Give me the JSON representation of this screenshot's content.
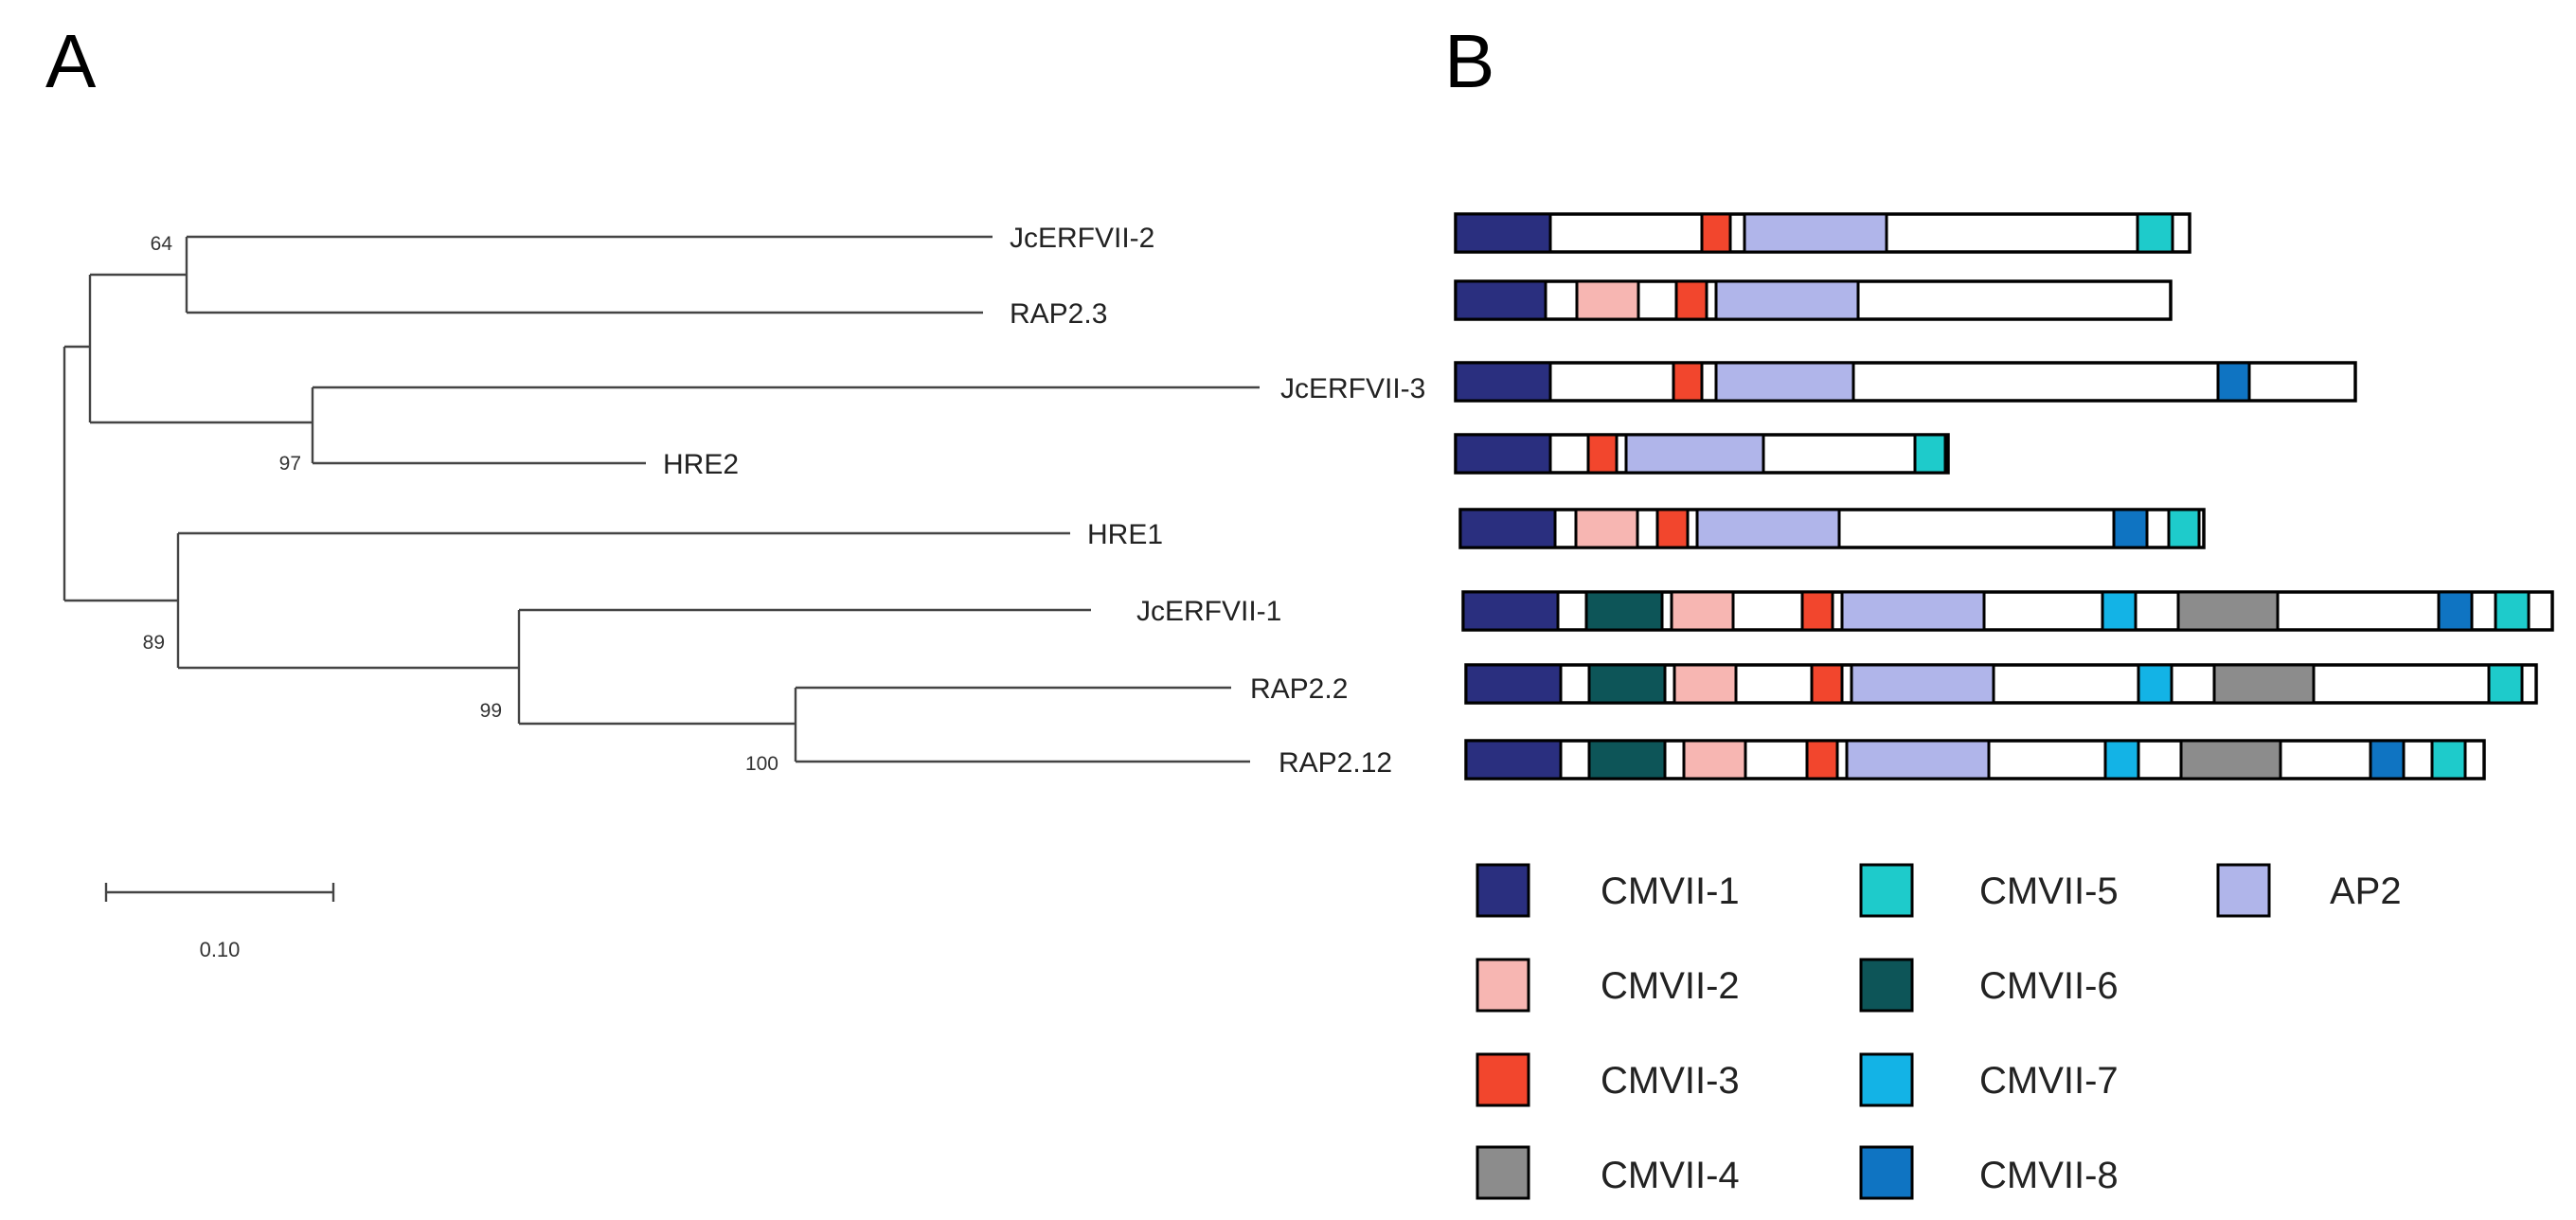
{
  "panel_labels": {
    "a": "A",
    "b": "B"
  },
  "tree": {
    "taxa": [
      "JcERFVII-2",
      "RAP2.3",
      "JcERFVII-3",
      "HRE2",
      "HRE1",
      "JcERFVII-1",
      "RAP2.2",
      "RAP2.12"
    ],
    "bootstrap": [
      "64",
      "97",
      "89",
      "99",
      "100"
    ],
    "scale_label": "0.10",
    "scale_value": 0.1,
    "line_color": "#444444"
  },
  "motifs": {
    "CMVII-1": "#2a2f7f",
    "CMVII-2": "#f7b6b2",
    "CMVII-3": "#f2462d",
    "CMVII-4": "#8c8c8c",
    "CMVII-5": "#1ecbcb",
    "CMVII-6": "#0d5558",
    "CMVII-7": "#13b3e6",
    "CMVII-8": "#0f74c2",
    "AP2": "#b0b5ea"
  },
  "legend": [
    {
      "label": "CMVII-1",
      "motif": "CMVII-1"
    },
    {
      "label": "CMVII-2",
      "motif": "CMVII-2"
    },
    {
      "label": "CMVII-3",
      "motif": "CMVII-3"
    },
    {
      "label": "CMVII-4",
      "motif": "CMVII-4"
    },
    {
      "label": "CMVII-5",
      "motif": "CMVII-5"
    },
    {
      "label": "CMVII-6",
      "motif": "CMVII-6"
    },
    {
      "label": "CMVII-7",
      "motif": "CMVII-7"
    },
    {
      "label": "CMVII-8",
      "motif": "CMVII-8"
    },
    {
      "label": "AP2",
      "motif": "AP2"
    }
  ],
  "proteins": [
    {
      "taxon": "JcERFVII-2",
      "length": 775,
      "domains": [
        {
          "m": "CMVII-1",
          "s": 0,
          "e": 100
        },
        {
          "m": "CMVII-3",
          "s": 260,
          "e": 290
        },
        {
          "m": "AP2",
          "s": 305,
          "e": 455
        },
        {
          "m": "CMVII-5",
          "s": 720,
          "e": 757
        }
      ]
    },
    {
      "taxon": "RAP2.3",
      "length": 755,
      "domains": [
        {
          "m": "CMVII-1",
          "s": 0,
          "e": 95
        },
        {
          "m": "CMVII-2",
          "s": 128,
          "e": 193
        },
        {
          "m": "CMVII-3",
          "s": 233,
          "e": 265
        },
        {
          "m": "AP2",
          "s": 275,
          "e": 425
        }
      ]
    },
    {
      "taxon": "JcERFVII-3",
      "length": 950,
      "domains": [
        {
          "m": "CMVII-1",
          "s": 0,
          "e": 100
        },
        {
          "m": "CMVII-3",
          "s": 230,
          "e": 260
        },
        {
          "m": "AP2",
          "s": 275,
          "e": 420
        },
        {
          "m": "CMVII-8",
          "s": 805,
          "e": 838
        }
      ]
    },
    {
      "taxon": "HRE2",
      "length": 520,
      "domains": [
        {
          "m": "CMVII-1",
          "s": 0,
          "e": 100
        },
        {
          "m": "CMVII-3",
          "s": 140,
          "e": 170
        },
        {
          "m": "AP2",
          "s": 180,
          "e": 325
        },
        {
          "m": "CMVII-5",
          "s": 485,
          "e": 517
        }
      ]
    },
    {
      "taxon": "HRE1",
      "length": 785,
      "domains": [
        {
          "m": "CMVII-1",
          "s": 0,
          "e": 100
        },
        {
          "m": "CMVII-2",
          "s": 122,
          "e": 187
        },
        {
          "m": "CMVII-3",
          "s": 208,
          "e": 240
        },
        {
          "m": "AP2",
          "s": 250,
          "e": 400
        },
        {
          "m": "CMVII-8",
          "s": 690,
          "e": 725
        },
        {
          "m": "CMVII-5",
          "s": 748,
          "e": 780
        }
      ]
    },
    {
      "taxon": "JcERFVII-1",
      "length": 1150,
      "domains": [
        {
          "m": "CMVII-1",
          "s": 0,
          "e": 100
        },
        {
          "m": "CMVII-6",
          "s": 130,
          "e": 210
        },
        {
          "m": "CMVII-2",
          "s": 220,
          "e": 285
        },
        {
          "m": "CMVII-3",
          "s": 358,
          "e": 390
        },
        {
          "m": "AP2",
          "s": 400,
          "e": 550
        },
        {
          "m": "CMVII-7",
          "s": 675,
          "e": 710
        },
        {
          "m": "CMVII-4",
          "s": 755,
          "e": 860
        },
        {
          "m": "CMVII-8",
          "s": 1030,
          "e": 1065
        },
        {
          "m": "CMVII-5",
          "s": 1090,
          "e": 1125
        }
      ]
    },
    {
      "taxon": "RAP2.2",
      "length": 1130,
      "domains": [
        {
          "m": "CMVII-1",
          "s": 0,
          "e": 100
        },
        {
          "m": "CMVII-6",
          "s": 130,
          "e": 210
        },
        {
          "m": "CMVII-2",
          "s": 220,
          "e": 285
        },
        {
          "m": "CMVII-3",
          "s": 365,
          "e": 397
        },
        {
          "m": "AP2",
          "s": 407,
          "e": 557
        },
        {
          "m": "CMVII-7",
          "s": 710,
          "e": 745
        },
        {
          "m": "CMVII-4",
          "s": 790,
          "e": 895
        },
        {
          "m": "CMVII-5",
          "s": 1080,
          "e": 1115
        }
      ]
    },
    {
      "taxon": "RAP2.12",
      "length": 1075,
      "domains": [
        {
          "m": "CMVII-1",
          "s": 0,
          "e": 100
        },
        {
          "m": "CMVII-6",
          "s": 130,
          "e": 210
        },
        {
          "m": "CMVII-2",
          "s": 230,
          "e": 295
        },
        {
          "m": "CMVII-3",
          "s": 360,
          "e": 392
        },
        {
          "m": "AP2",
          "s": 402,
          "e": 552
        },
        {
          "m": "CMVII-7",
          "s": 675,
          "e": 710
        },
        {
          "m": "CMVII-4",
          "s": 755,
          "e": 860
        },
        {
          "m": "CMVII-8",
          "s": 955,
          "e": 990
        },
        {
          "m": "CMVII-5",
          "s": 1020,
          "e": 1055
        }
      ]
    }
  ]
}
